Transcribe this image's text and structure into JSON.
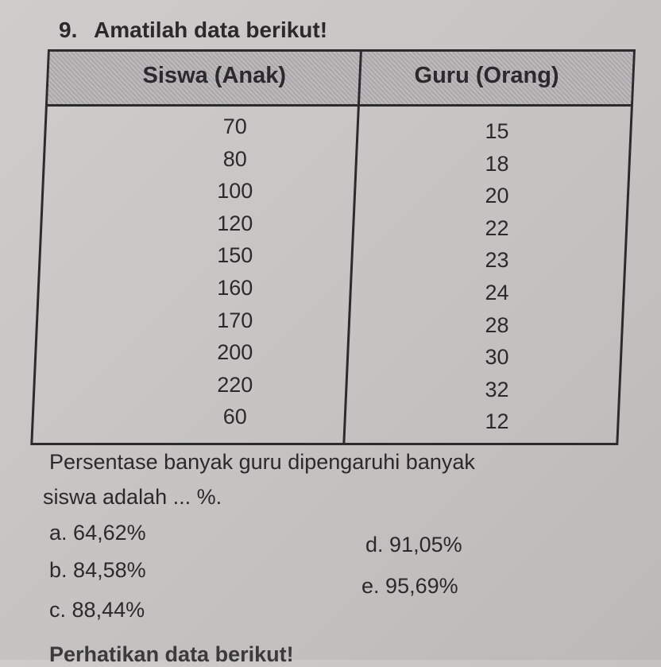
{
  "question": {
    "number": "9.",
    "instruction": "Amatilah data berikut!",
    "table": {
      "headers": [
        "Siswa (Anak)",
        "Guru (Orang)"
      ],
      "siswa": [
        "70",
        "80",
        "100",
        "120",
        "150",
        "160",
        "170",
        "200",
        "220",
        "60"
      ],
      "guru": [
        "15",
        "18",
        "20",
        "22",
        "23",
        "24",
        "28",
        "30",
        "32",
        "12"
      ]
    },
    "prompt_line1": "Persentase banyak guru dipengaruhi banyak",
    "prompt_line2": "siswa adalah ... %.",
    "options": [
      {
        "letter": "a.",
        "text": "64,62%"
      },
      {
        "letter": "b.",
        "text": "84,58%"
      },
      {
        "letter": "c.",
        "text": "88,44%"
      },
      {
        "letter": "d.",
        "text": "91,05%"
      },
      {
        "letter": "e.",
        "text": "95,69%"
      }
    ]
  },
  "next_question_partial": "Perhatikan data berikut!"
}
